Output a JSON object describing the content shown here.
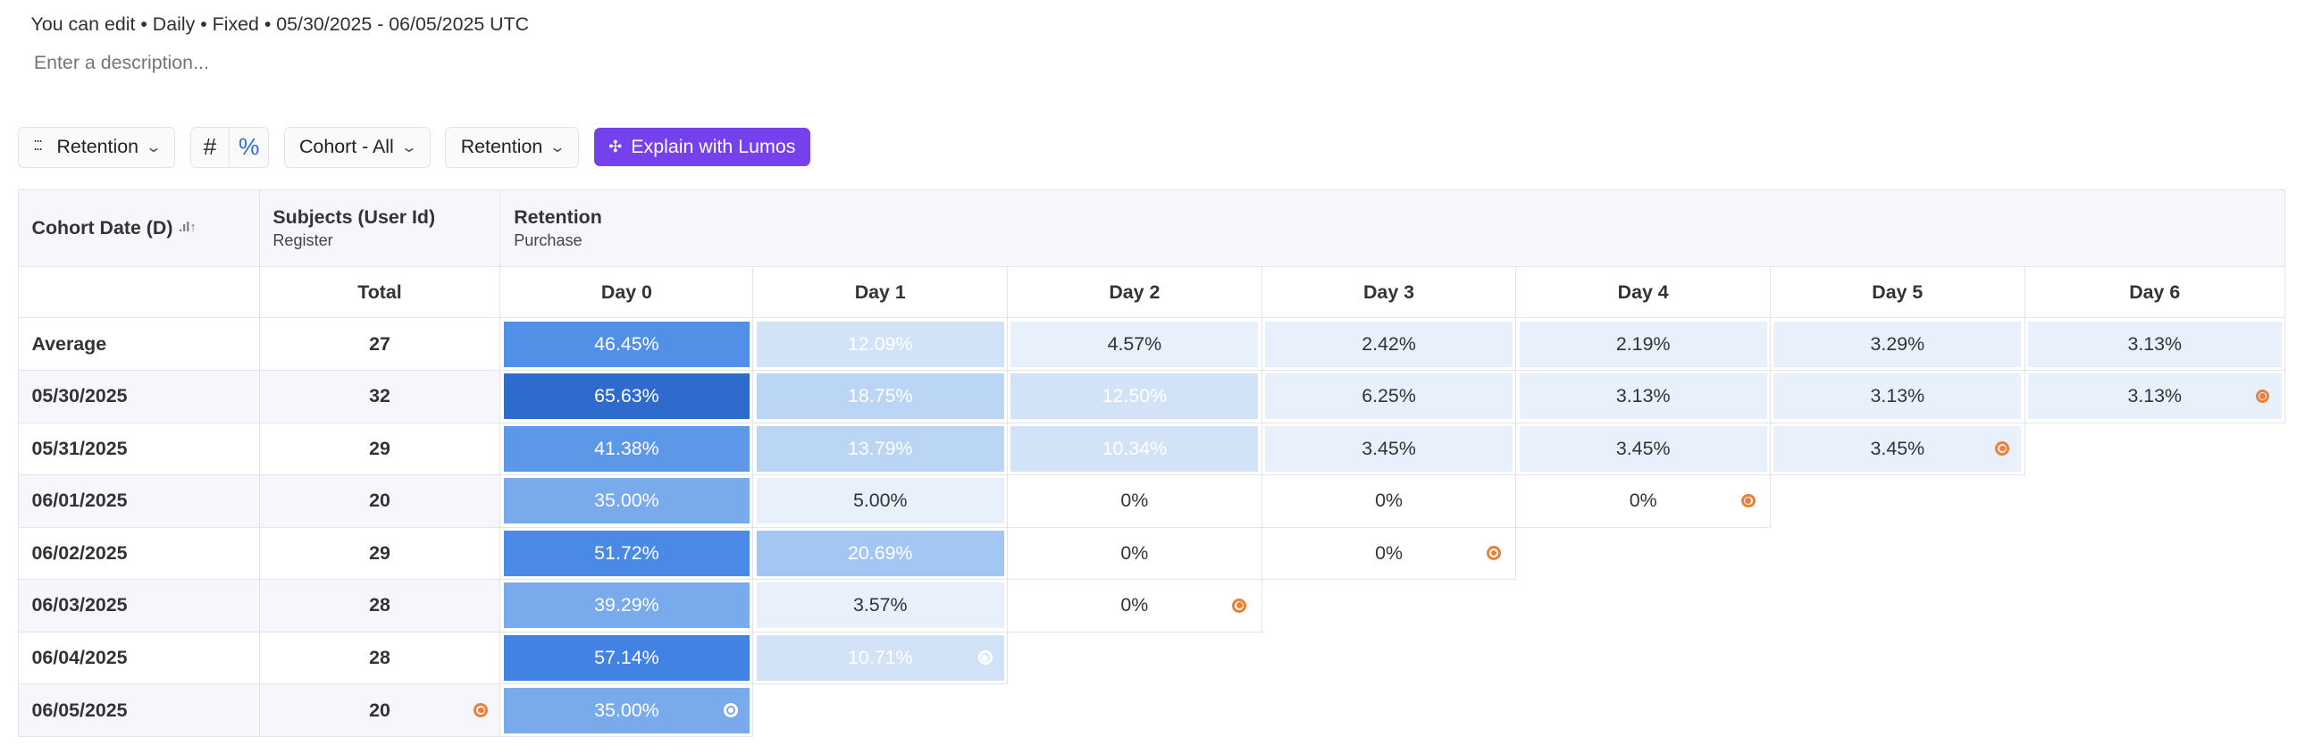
{
  "meta_line": "You can edit • Daily • Fixed • 05/30/2025 - 06/05/2025 UTC",
  "description_placeholder": "Enter a description...",
  "toolbar": {
    "view_label": "Retention",
    "hash_label": "#",
    "percent_label": "%",
    "cohort_label": "Cohort - All",
    "metric_label": "Retention",
    "lumos_label": "Explain with Lumos"
  },
  "colors": {
    "accent": "#7541ec",
    "marker": "#e8823a"
  },
  "table": {
    "col_cohort": "Cohort Date (D)",
    "col_subjects": "Subjects (User Id)",
    "col_subjects_sub": "Register",
    "col_retention": "Retention",
    "col_retention_sub": "Purchase",
    "total_label": "Total",
    "days": [
      "Day 0",
      "Day 1",
      "Day 2",
      "Day 3",
      "Day 4",
      "Day 5",
      "Day 6"
    ],
    "rows": [
      {
        "label": "Average",
        "total": "27",
        "values": [
          "46.45%",
          "12.09%",
          "4.57%",
          "2.42%",
          "2.19%",
          "3.29%",
          "3.13%"
        ],
        "marker_col": null
      },
      {
        "label": "05/30/2025",
        "total": "32",
        "values": [
          "65.63%",
          "18.75%",
          "12.50%",
          "6.25%",
          "3.13%",
          "3.13%",
          "3.13%"
        ],
        "marker_col": 6
      },
      {
        "label": "05/31/2025",
        "total": "29",
        "values": [
          "41.38%",
          "13.79%",
          "10.34%",
          "3.45%",
          "3.45%",
          "3.45%"
        ],
        "marker_col": 5
      },
      {
        "label": "06/01/2025",
        "total": "20",
        "values": [
          "35.00%",
          "5.00%",
          "0%",
          "0%",
          "0%"
        ],
        "marker_col": 4
      },
      {
        "label": "06/02/2025",
        "total": "29",
        "values": [
          "51.72%",
          "20.69%",
          "0%",
          "0%"
        ],
        "marker_col": 3
      },
      {
        "label": "06/03/2025",
        "total": "28",
        "values": [
          "39.29%",
          "3.57%",
          "0%"
        ],
        "marker_col": 2
      },
      {
        "label": "06/04/2025",
        "total": "28",
        "values": [
          "57.14%",
          "10.71%"
        ],
        "marker_col": 1
      },
      {
        "label": "06/05/2025",
        "total": "20",
        "values": [
          "35.00%"
        ],
        "marker_col": 0,
        "total_marker": true
      }
    ]
  }
}
